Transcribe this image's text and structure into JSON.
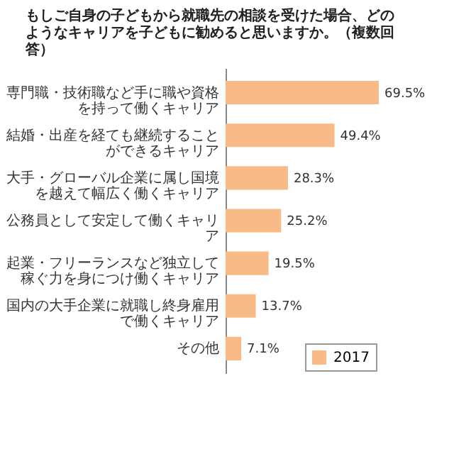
{
  "chart_data": {
    "type": "bar",
    "orientation": "horizontal",
    "title": "もしご自身の子どもから就職先の相談を受けた場合、どのようなキャリアを子どもに勧めると思いますか。（複数回答）",
    "categories": [
      "専門職・技術職など手に職や資格を持って働くキャリア",
      "結婚・出産を経ても継続することができるキャリア",
      "大手・グローバル企業に属し国境を越えて幅広く働くキャリア",
      "公務員として安定して働くキャリア",
      "起業・フリーランスなど独立して稼ぐ力を身につけ働くキャリア",
      "国内の大手企業に就職し終身雇用で働くキャリア",
      "その他"
    ],
    "series": [
      {
        "name": "2017",
        "color": "#f8bb88",
        "values": [
          69.5,
          49.4,
          28.3,
          25.2,
          19.5,
          13.7,
          7.1
        ],
        "value_labels": [
          "69.5%",
          "49.4%",
          "28.3%",
          "25.2%",
          "19.5%",
          "13.7%",
          "7.1%"
        ]
      }
    ],
    "legend": "bottom right"
  }
}
